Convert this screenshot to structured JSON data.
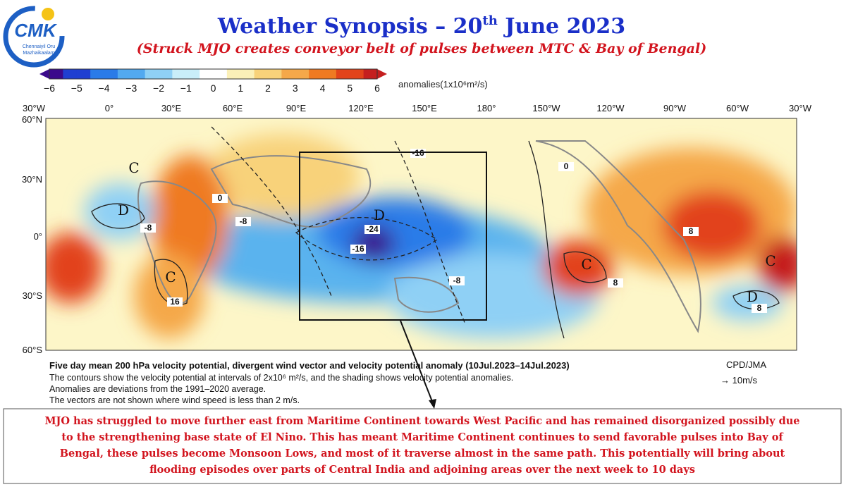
{
  "logo": {
    "name": "CMK",
    "tagline": [
      "Chennaiyil Oru",
      "Mazhaikaalam"
    ]
  },
  "header": {
    "title_parts": [
      "Weather Synopsis – 20",
      "th",
      " June 2023"
    ],
    "subtitle": "(Struck MJO creates conveyor belt of pulses between MTC & Bay of Bengal)"
  },
  "colorbar": {
    "labels": [
      "−6",
      "−5",
      "−4",
      "−3",
      "−2",
      "−1",
      "0",
      "1",
      "2",
      "3",
      "4",
      "5",
      "6"
    ],
    "units": "anomalies(1x10⁶m²/s)"
  },
  "map": {
    "longitudes": [
      "30°W",
      "0°",
      "30°E",
      "60°E",
      "90°E",
      "120°E",
      "150°E",
      "180°",
      "150°W",
      "120°W",
      "90°W",
      "60°W",
      "30°W"
    ],
    "latitudes": [
      "60°N",
      "30°N",
      "0°",
      "30°S",
      "60°S"
    ],
    "labels": [
      "C",
      "D",
      "C",
      "D",
      "C",
      "C",
      "D",
      "0",
      "-8",
      "16",
      "-24",
      "-16",
      "-8",
      "-16",
      "0",
      "8",
      "8",
      "8",
      "-8"
    ]
  },
  "caption": {
    "title": "Five day mean 200 hPa velocity potential, divergent wind vector and velocity potential anomaly (10Jul.2023–14Jul.2023)",
    "lines": [
      "The contours show the velocity potential at intervals of 2x10⁶ m²/s, and the shading shows velocity potential anomalies.",
      "Anomalies are deviations from the 1991–2020 average.",
      "The vectors are not shown where wind speed is less than 2 m/s."
    ],
    "source": "CPD/JMA",
    "scale": "→ 10m/s"
  },
  "note": {
    "lines": [
      "MJO has struggled to move further east from Maritime Continent towards West Pacific and has remained disorganized possibly due",
      "to the strengthening base state of El Nino.  This has meant Maritime Continent continues to send favorable pulses into Bay of",
      "Bengal, these pulses become Monsoon Lows, and most of it traverse almost in the same path. This potentially will bring about",
      "flooding episodes over parts of Central India and adjoining areas over the next week to 10 days"
    ]
  }
}
